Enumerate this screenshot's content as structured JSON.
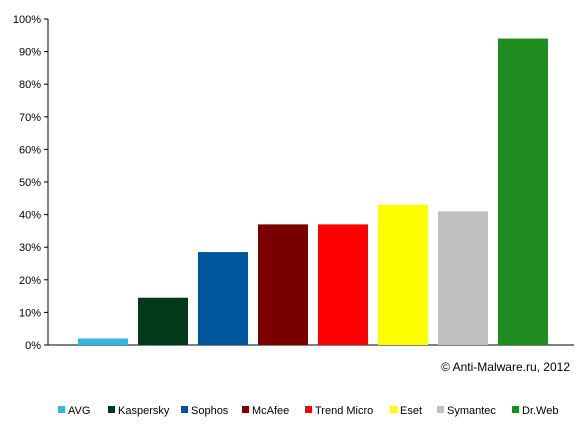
{
  "chart_data": {
    "type": "bar",
    "categories": [
      "AVG",
      "Kaspersky",
      "Sophos",
      "McAfee",
      "Trend Micro",
      "Eset",
      "Symantec",
      "Dr.Web"
    ],
    "values": [
      2,
      14.5,
      28.5,
      37,
      37,
      43,
      41,
      94
    ],
    "colors": [
      "#33b6e6",
      "#003a19",
      "#00569d",
      "#7a0000",
      "#ff0000",
      "#ffff00",
      "#c0c0c0",
      "#1e8c1e"
    ],
    "ylim": [
      0,
      100
    ],
    "yticks": [
      "0%",
      "10%",
      "20%",
      "30%",
      "40%",
      "50%",
      "60%",
      "70%",
      "80%",
      "90%",
      "100%"
    ],
    "grid": false,
    "legend_position": "bottom",
    "annotation": "© Anti-Malware.ru,  2012"
  }
}
